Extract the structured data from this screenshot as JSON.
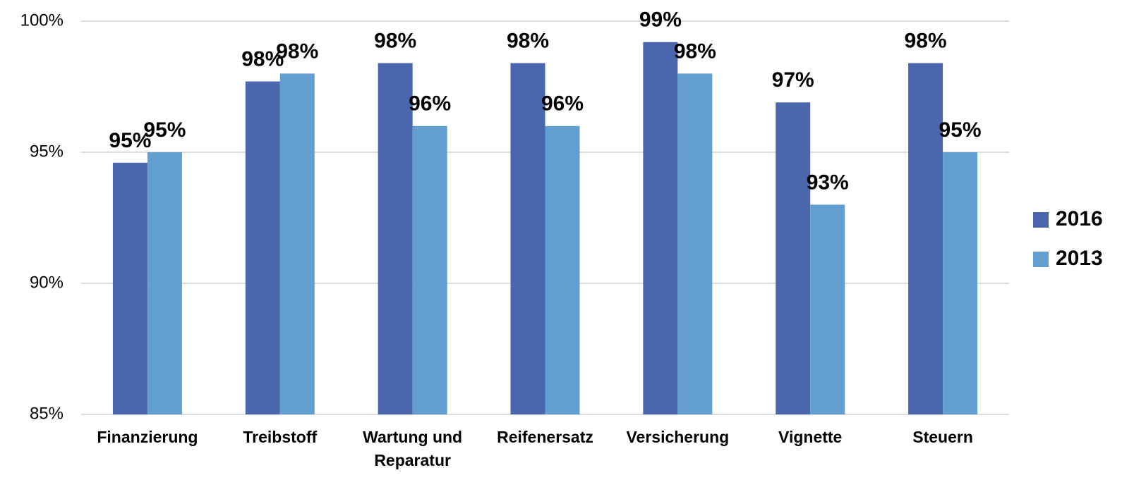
{
  "chart_data": {
    "type": "bar",
    "categories": [
      "Finanzierung",
      "Treibstoff",
      "Wartung und Reparatur",
      "Reifenersatz",
      "Versicherung",
      "Vignette",
      "Steuern"
    ],
    "series": [
      {
        "name": "2016",
        "color": "#4a66ac",
        "values": [
          94.6,
          97.7,
          98.4,
          98.4,
          99.2,
          96.9,
          98.4
        ],
        "value_labels": [
          "95%",
          "98%",
          "98%",
          "98%",
          "99%",
          "97%",
          "98%"
        ]
      },
      {
        "name": "2013",
        "color": "#629fd0",
        "values": [
          95.0,
          98.0,
          96.0,
          96.0,
          98.0,
          93.0,
          95.0
        ],
        "value_labels": [
          "95%",
          "98%",
          "96%",
          "96%",
          "98%",
          "93%",
          "95%"
        ]
      }
    ],
    "ylim": [
      85,
      100
    ],
    "yticks": [
      {
        "value": 85,
        "label": "85%"
      },
      {
        "value": 90,
        "label": "90%"
      },
      {
        "value": 95,
        "label": "95%"
      },
      {
        "value": 100,
        "label": "100%"
      }
    ],
    "grid": true,
    "legend": "right"
  }
}
